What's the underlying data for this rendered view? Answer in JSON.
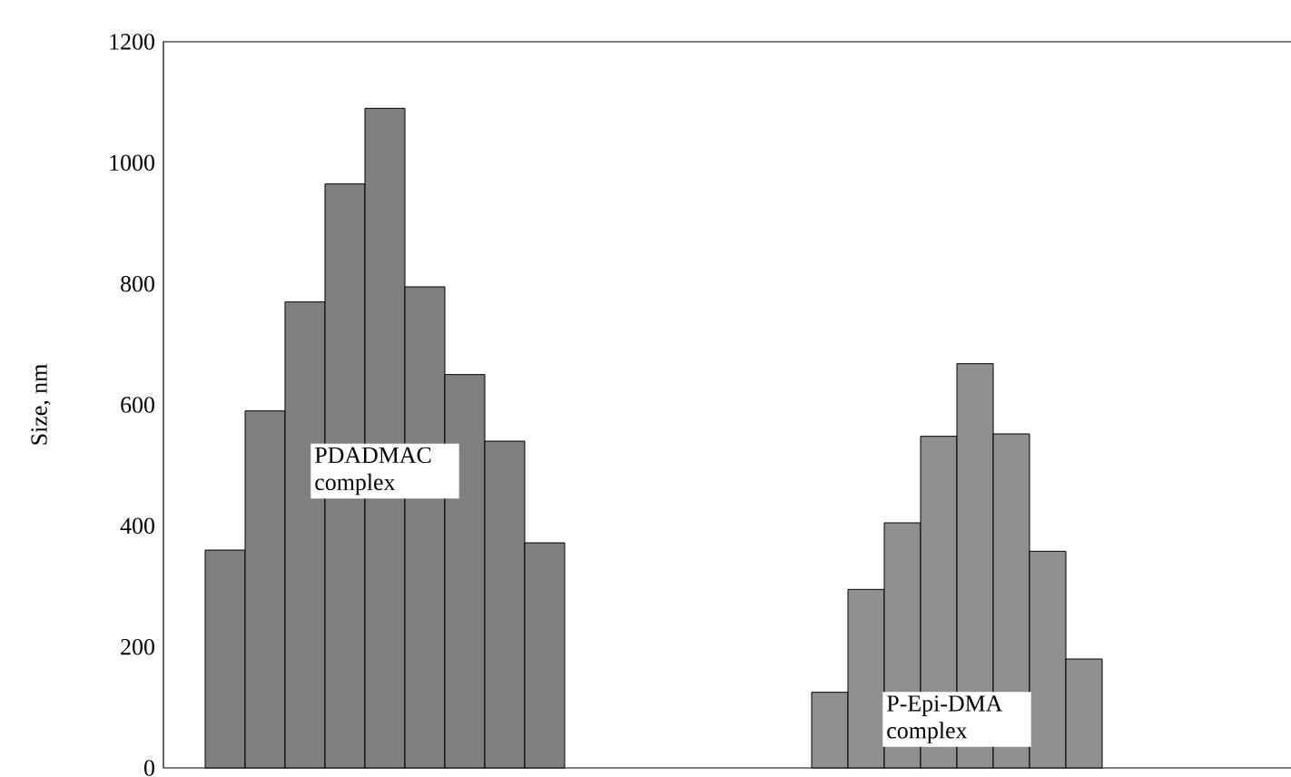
{
  "chart_data": [
    {
      "type": "bar",
      "ylabel": "Size, nm",
      "categories": [
        null,
        null,
        null,
        null,
        null,
        null,
        null,
        null,
        null
      ],
      "values": [
        360,
        590,
        770,
        965,
        1090,
        795,
        650,
        540,
        372
      ],
      "color": "#7f7f7f",
      "annotations": [
        "PDADMAC complex"
      ],
      "ylim": [
        0,
        1200
      ],
      "yticks": [
        0,
        200,
        400,
        600,
        800,
        1000,
        1200
      ],
      "grid": false
    },
    {
      "type": "bar",
      "categories": [
        null,
        null,
        null,
        null,
        null,
        null,
        null,
        null
      ],
      "values": [
        125,
        295,
        405,
        548,
        668,
        552,
        358,
        180
      ],
      "color": "#8f8f8f",
      "annotations": [
        "P-Epi-DMA complex"
      ],
      "ylim": [
        0,
        1200
      ],
      "tick_labels": false,
      "grid": false
    }
  ]
}
